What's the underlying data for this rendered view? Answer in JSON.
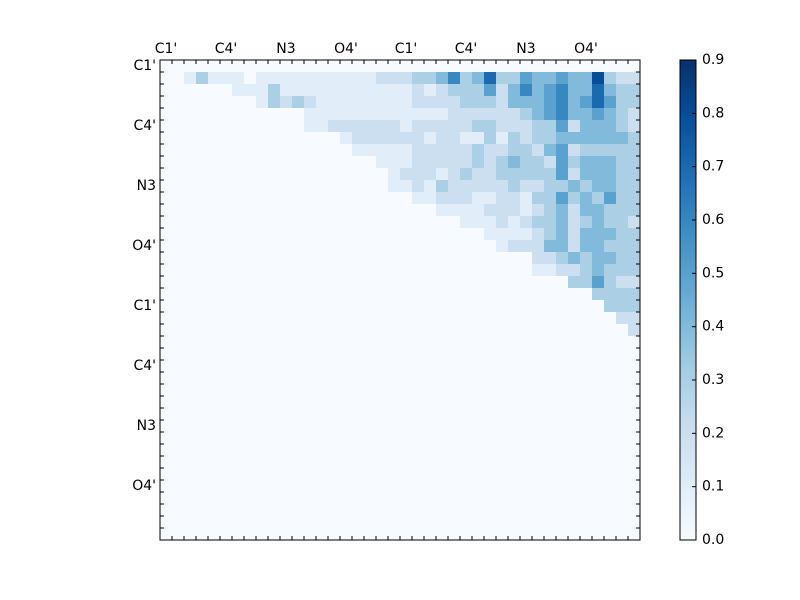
{
  "chart_data": {
    "type": "heatmap",
    "title": "",
    "xlabel": "",
    "ylabel": "",
    "colormap": "Blues",
    "grid": false,
    "n_cells": 40,
    "x_tick_labels": [
      "C1'",
      "C4'",
      "N3",
      "O4'",
      "C1'",
      "C4'",
      "N3",
      "O4'"
    ],
    "x_tick_cells": [
      0,
      5,
      10,
      15,
      20,
      25,
      30,
      35
    ],
    "y_tick_labels": [
      "C1'",
      "C4'",
      "N3",
      "O4'",
      "C1'",
      "C4'",
      "N3",
      "O4'"
    ],
    "y_tick_cells": [
      0,
      5,
      10,
      15,
      20,
      25,
      30,
      35
    ],
    "colorbar": {
      "min": 0.0,
      "max": 0.9,
      "tick_values": [
        0.0,
        0.1,
        0.2,
        0.3,
        0.4,
        0.5,
        0.6,
        0.7,
        0.8,
        0.9
      ],
      "tick_labels": [
        "0.0",
        "0.1",
        "0.2",
        "0.3",
        "0.4",
        "0.5",
        "0.6",
        "0.7",
        "0.8",
        "0.9"
      ]
    },
    "matrix_rows": [
      "0000000000000000000000000000000000000000",
      "0013111011111111112223346347335445448322",
      "0000001113111111111112123335246456447433",
      "0000000013232111111112222333244456457533",
      "0000000000001111111111112222223456445432",
      "0000000000001122222212222233222335244432",
      "0000000000000001222222122113132334444443",
      "0000000000000000111112222232233245233333",
      "0000000000000000001112222232343325344433",
      "0000000000000000000122212322333335244433",
      "0000000000000000000112132222232233434433",
      "0000000000000000000001122211221335343533",
      "0000000000000000000000011112221234244333",
      "0000000000000000000000000111212334234332",
      "0000000000000000000000000001111234244433",
      "0000000000000000000000000000122244244333",
      "0000000000000000000000000000000223434433",
      "0000000000000000000000000000000112234333",
      "0000000000000000000000000000000000335322",
      "0000000000000000000000000000000000003333",
      "0000000000000000000000000000000000000333",
      "0000000000000000000000000000000000000022",
      "0000000000000000000000000000000000000002",
      "0000000000000000000000000000000000000000",
      "0000000000000000000000000000000000000000",
      "0000000000000000000000000000000000000000",
      "0000000000000000000000000000000000000000",
      "0000000000000000000000000000000000000000",
      "0000000000000000000000000000000000000000",
      "0000000000000000000000000000000000000000",
      "0000000000000000000000000000000000000000",
      "0000000000000000000000000000000000000000",
      "0000000000000000000000000000000000000000",
      "0000000000000000000000000000000000000000",
      "0000000000000000000000000000000000000000",
      "0000000000000000000000000000000000000000",
      "0000000000000000000000000000000000000000",
      "0000000000000000000000000000000000000000",
      "0000000000000000000000000000000000000000",
      "0000000000000000000000000000000000000000"
    ],
    "value_scale_note_values": [
      0.0,
      0.1,
      0.2,
      0.3,
      0.4,
      0.5,
      0.6,
      0.7,
      0.8,
      0.9
    ]
  }
}
